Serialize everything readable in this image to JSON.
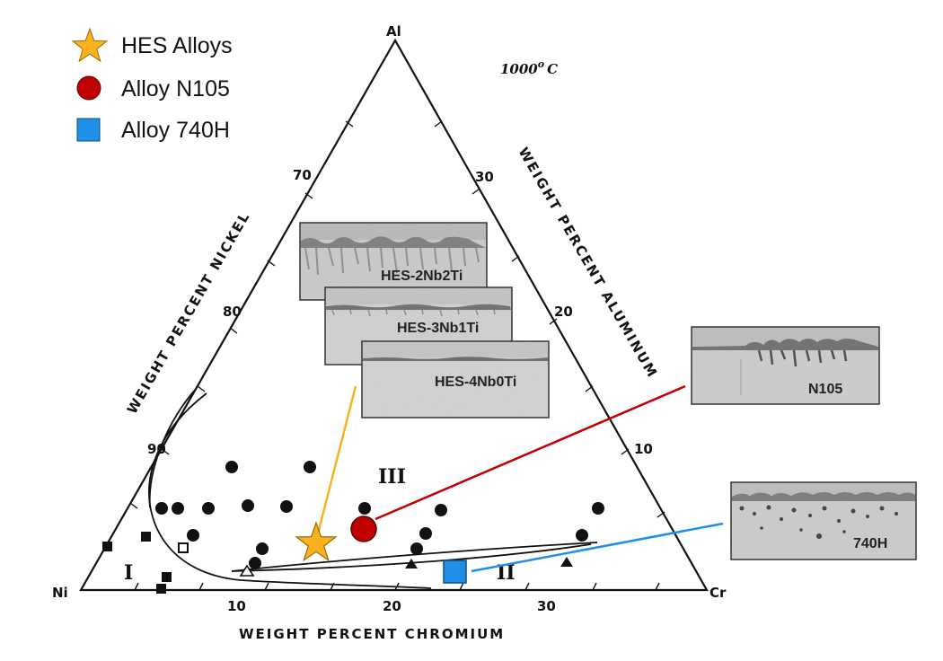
{
  "legend": [
    {
      "label": "HES Alloys",
      "marker": "star-icon",
      "color": "#F8B21F"
    },
    {
      "label": "Alloy N105",
      "marker": "circle-icon",
      "color": "#C00000"
    },
    {
      "label": "Alloy 740H",
      "marker": "square-icon",
      "color": "#1F8FE8"
    }
  ],
  "corners": {
    "top": "Al",
    "left": "Ni",
    "right": "Cr"
  },
  "temperature": {
    "value": "1000",
    "sup": "o",
    "unit": "C"
  },
  "axes": {
    "left": "WEIGHT  PERCENT  NICKEL",
    "right": "WEIGHT  PERCENT  ALUMINUM",
    "bottom": "WEIGHT  PERCENT  CHROMIUM"
  },
  "ticks": {
    "nickel": [
      "70",
      "80",
      "90"
    ],
    "aluminum": [
      "30",
      "20",
      "10"
    ],
    "chromium": [
      "10",
      "20",
      "30"
    ]
  },
  "regions": [
    "I",
    "II",
    "III"
  ],
  "micrographs": [
    {
      "label": "HES-2Nb2Ti"
    },
    {
      "label": "HES-3Nb1Ti"
    },
    {
      "label": "HES-4Nb0Ti"
    },
    {
      "label": "N105"
    },
    {
      "label": "740H"
    }
  ],
  "leader_colors": {
    "hes": "#F8B21F",
    "n105": "#C00000",
    "h740": "#1F8FE8"
  }
}
